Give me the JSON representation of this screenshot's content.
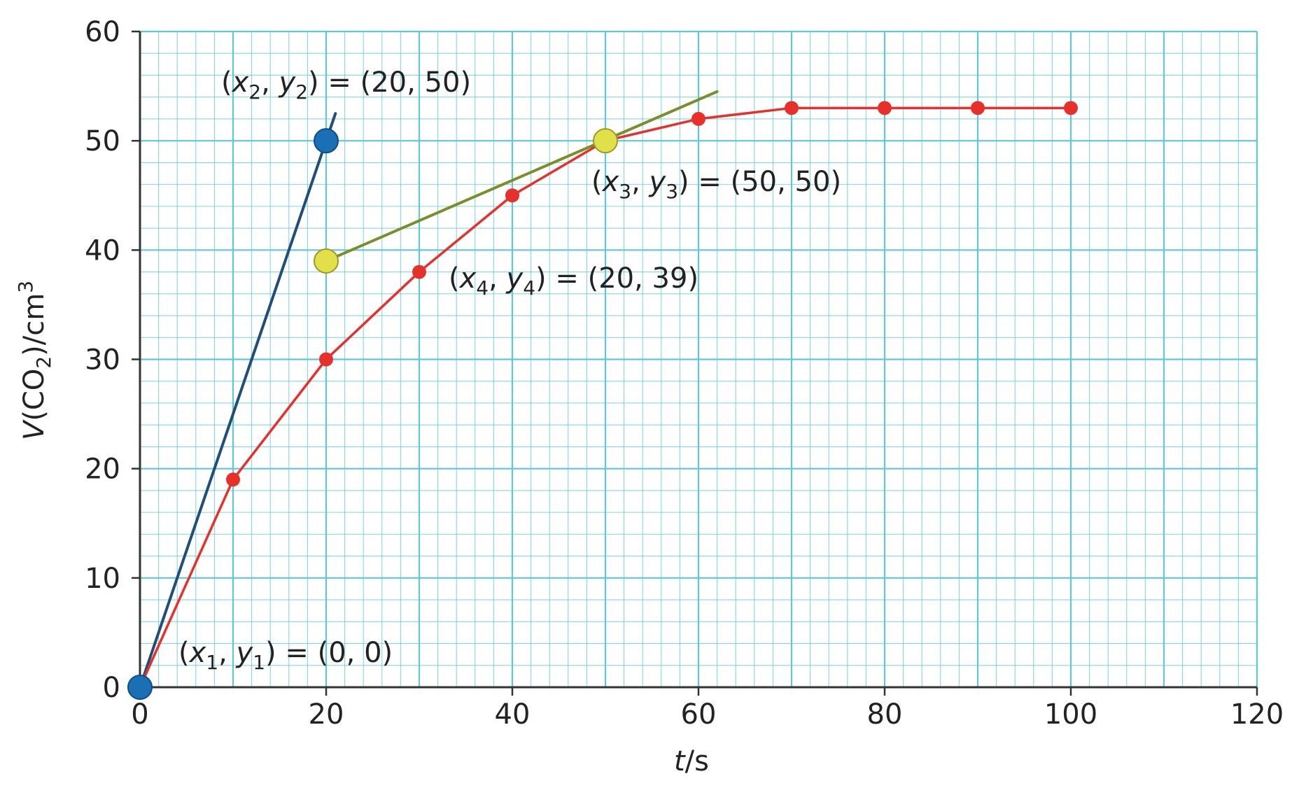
{
  "chart_data": {
    "type": "line",
    "xlabel": "t/s",
    "ylabel": "V(CO2)/cm3",
    "xlim": [
      0,
      120
    ],
    "ylim": [
      0,
      60
    ],
    "x_ticks": [
      0,
      20,
      40,
      60,
      80,
      100,
      120
    ],
    "y_ticks": [
      0,
      10,
      20,
      30,
      40,
      50,
      60
    ],
    "grid": true,
    "grid_color": "#5fc6dd",
    "series": [
      {
        "color": "#e8302a",
        "x": [
          0,
          10,
          20,
          30,
          40,
          50,
          60,
          70,
          80,
          90,
          100
        ],
        "y": [
          0,
          19,
          30,
          38,
          45,
          50,
          52,
          53,
          53,
          53,
          53
        ]
      }
    ],
    "lines": [
      {
        "id": "initial_tangent",
        "color": "#1f4e79",
        "points": [
          [
            0,
            0
          ],
          [
            21,
            52.5
          ]
        ]
      },
      {
        "id": "tangent_at_50",
        "color": "#7a8f2a",
        "points": [
          [
            20,
            39
          ],
          [
            62,
            54.5
          ]
        ]
      }
    ],
    "annotations": [
      {
        "id": "p1",
        "x": 0,
        "y": 0,
        "color": "#1a6fb5",
        "xvar": "x",
        "yvar": "y",
        "sub": "1",
        "value": "(0, 0)"
      },
      {
        "id": "p2",
        "x": 20,
        "y": 50,
        "color": "#1a6fb5",
        "xvar": "x",
        "yvar": "y",
        "sub": "2",
        "value": "(20, 50)"
      },
      {
        "id": "p3",
        "x": 50,
        "y": 50,
        "color": "#e2e04a",
        "xvar": "x",
        "yvar": "y",
        "sub": "3",
        "value": "(50, 50)"
      },
      {
        "id": "p4",
        "x": 20,
        "y": 39,
        "color": "#e2e04a",
        "xvar": "x",
        "yvar": "y",
        "sub": "4",
        "value": "(20, 39)"
      }
    ]
  },
  "labels": {
    "xlabel_var": "t",
    "xlabel_unit": "/s",
    "ylabel_var": "V",
    "ylabel_open": "(CO",
    "ylabel_sub": "2",
    "ylabel_unit": ")/cm",
    "ylabel_sup": "3",
    "ann_open": "(",
    "ann_comma": ", ",
    "ann_close": ") = "
  }
}
